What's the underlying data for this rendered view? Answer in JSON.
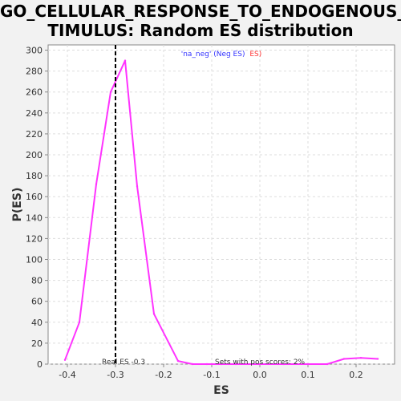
{
  "chart_data": {
    "type": "line",
    "title_line1": "GO_CELLULAR_RESPONSE_TO_ENDOGENOUS_S",
    "title_line2": "TIMULUS: Random ES distribution",
    "xlabel": "ES",
    "ylabel": "P(ES)",
    "xlim": [
      -0.44,
      0.28
    ],
    "ylim": [
      0,
      305
    ],
    "x_ticks": [
      -0.4,
      -0.3,
      -0.2,
      -0.1,
      0.0,
      0.1,
      0.2
    ],
    "x_tick_labels": [
      "-0.4",
      "-0.3",
      "-0.2",
      "-0.1",
      "0.0",
      "0.1",
      "0.2"
    ],
    "y_ticks": [
      0,
      20,
      40,
      60,
      80,
      100,
      120,
      140,
      160,
      180,
      200,
      220,
      240,
      260,
      280,
      300
    ],
    "grid": true,
    "series": [
      {
        "color": "#ff33ff",
        "x": [
          -0.405,
          -0.375,
          -0.34,
          -0.31,
          -0.28,
          -0.255,
          -0.22,
          -0.17,
          -0.14,
          -0.11,
          -0.08,
          -0.05,
          0.0,
          0.05,
          0.1,
          0.14,
          0.175,
          0.21,
          0.245
        ],
        "y": [
          4,
          40,
          172,
          260,
          290,
          170,
          48,
          3,
          0,
          0,
          0,
          0,
          0,
          0,
          0,
          0,
          5,
          6,
          5
        ]
      }
    ],
    "real_es": -0.3,
    "annotations": {
      "legend_part1": "'na_neg' (Neg ES)",
      "legend_part2": "ES)",
      "real_es_label": "Real ES -0.3",
      "pos_scores_label": "Sets with pos scores: 2%"
    },
    "colors": {
      "line": "#ff33ff",
      "legend_blue": "#3333ff",
      "legend_red": "#ff3333",
      "grid": "#dddddd",
      "plot_bg": "#ffffff"
    }
  }
}
